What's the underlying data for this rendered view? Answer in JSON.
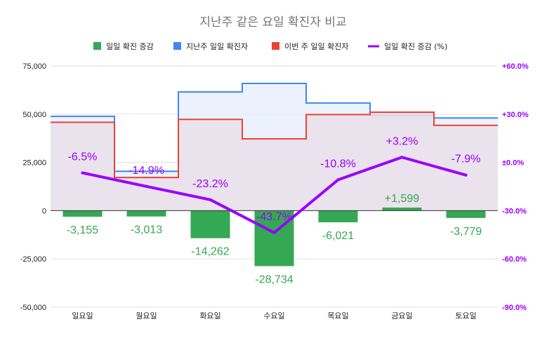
{
  "chart_data": {
    "type": "combo",
    "title": "지난주 같은 요일 확진자 비교",
    "categories": [
      "일요일",
      "월요일",
      "화요일",
      "수요일",
      "목요일",
      "금요일",
      "토요일"
    ],
    "series": [
      {
        "name": "일일 확진 증감",
        "kind": "bar",
        "axis": "left",
        "color": "#34a853",
        "values": [
          -3155,
          -3013,
          -14262,
          -28734,
          -6021,
          1599,
          -3779
        ],
        "labels": [
          "-3,155",
          "-3,013",
          "-14,262",
          "-28,734",
          "-6,021",
          "+1,599",
          "-3,779"
        ]
      },
      {
        "name": "지난주 일일 확진자",
        "kind": "stepped-area",
        "axis": "left",
        "color": "#4285f4",
        "fill": "#e8f0fe",
        "values": [
          48900,
          20400,
          61500,
          65900,
          55800,
          49400,
          48000
        ]
      },
      {
        "name": "이번 주 일일 확진자",
        "kind": "stepped-area",
        "axis": "left",
        "color": "#ea4335",
        "fill": "#eadfe9",
        "values": [
          45800,
          17200,
          47300,
          37200,
          49800,
          51000,
          44200
        ]
      },
      {
        "name": "일일 확진 증감 (%)",
        "kind": "line",
        "axis": "right",
        "color": "#9900ff",
        "values": [
          -6.5,
          -14.9,
          -23.2,
          -43.7,
          -10.8,
          3.2,
          -7.9
        ],
        "labels": [
          "-6.5%",
          "-14.9%",
          "-23.2%",
          "-43.7%",
          "-10.8%",
          "+3.2%",
          "-7.9%"
        ]
      }
    ],
    "y_left": {
      "min": -50000,
      "max": 75000,
      "ticks": [
        75000,
        50000,
        25000,
        0,
        -25000,
        -50000
      ],
      "tick_labels": [
        "75,000",
        "50,000",
        "25,000",
        "0",
        "-25,000",
        "-50,000"
      ]
    },
    "y_right": {
      "min": -90,
      "max": 60,
      "ticks": [
        60,
        30,
        0,
        -30,
        -60,
        -90
      ],
      "tick_labels": [
        "+60.0%",
        "+30.0%",
        "±0.0%",
        "-30.0%",
        "-60.0%",
        "-90.0%"
      ]
    },
    "grid": true,
    "legend_position": "top"
  }
}
